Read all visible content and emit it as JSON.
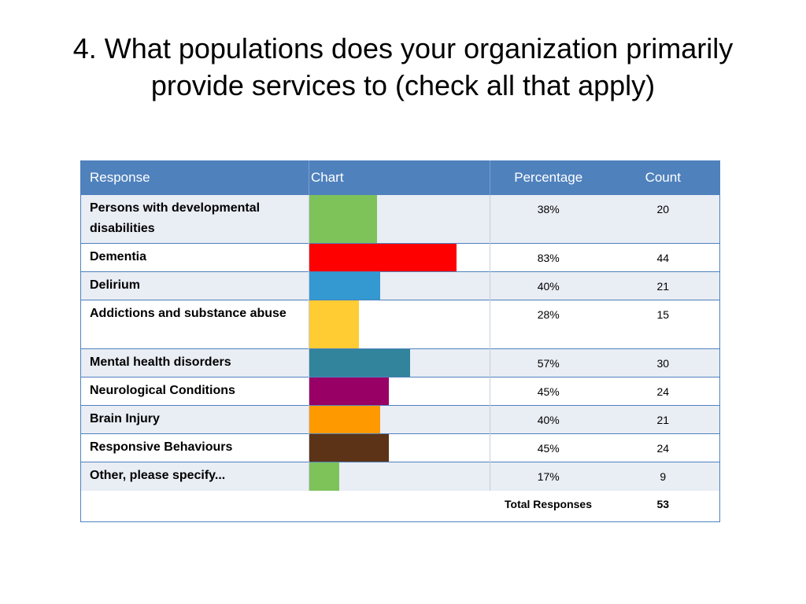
{
  "title": "4. What populations does your organization primarily provide services to (check all that apply)",
  "chart_data": {
    "type": "table",
    "columns": [
      "Response",
      "Chart",
      "Percentage",
      "Count"
    ],
    "rows": [
      {
        "label": "Persons with developmental disabilities",
        "percentage": "38%",
        "percent_value": 38,
        "count": "20",
        "color": "#7ec35a"
      },
      {
        "label": "Dementia",
        "percentage": "83%",
        "percent_value": 83,
        "count": "44",
        "color": "#ff0000"
      },
      {
        "label": "Delirium",
        "percentage": "40%",
        "percent_value": 40,
        "count": "21",
        "color": "#3399d0"
      },
      {
        "label": "Addictions and substance abuse",
        "percentage": "28%",
        "percent_value": 28,
        "count": "15",
        "color": "#ffcc33"
      },
      {
        "label": "Mental health disorders",
        "percentage": "57%",
        "percent_value": 57,
        "count": "30",
        "color": "#31849b"
      },
      {
        "label": "Neurological Conditions",
        "percentage": "45%",
        "percent_value": 45,
        "count": "24",
        "color": "#990066"
      },
      {
        "label": "Brain Injury",
        "percentage": "40%",
        "percent_value": 40,
        "count": "21",
        "color": "#ff9900"
      },
      {
        "label": "Responsive Behaviours",
        "percentage": "45%",
        "percent_value": 45,
        "count": "24",
        "color": "#5c3317"
      },
      {
        "label": "Other, please specify...",
        "percentage": "17%",
        "percent_value": 17,
        "count": "9",
        "color": "#7ec35a"
      }
    ],
    "total_label": "Total Responses",
    "total_count": "53",
    "bar_scale_max": 100,
    "header_color": "#4f81bd",
    "stripe_color": "#e9edf4"
  }
}
